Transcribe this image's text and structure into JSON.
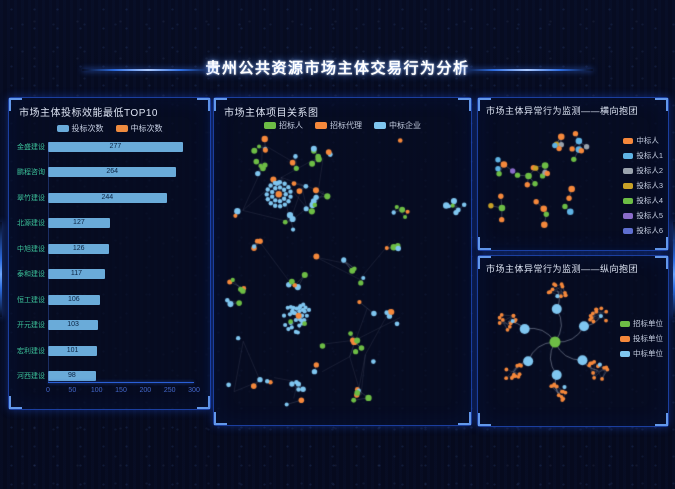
{
  "header": {
    "title": "贵州公共资源市场主体交易行为分析"
  },
  "chart_data": [
    {
      "id": "bidding-efficiency-top10",
      "type": "bar",
      "orientation": "horizontal",
      "title": "市场主体投标效能最低TOP10",
      "legend": [
        {
          "label": "投标次数",
          "color": "#6aabd9"
        },
        {
          "label": "中标次数",
          "color": "#ef8b3f"
        }
      ],
      "categories": [
        "金盛建设",
        "鹏程咨询",
        "翠竹建设",
        "北源建设",
        "中旭建设",
        "泰和建设",
        "恒工建设",
        "开元建设",
        "宏利建设",
        "河西建设"
      ],
      "values": [
        277,
        264,
        244,
        127,
        126,
        117,
        106,
        103,
        101,
        98
      ],
      "series_name": "投标次数",
      "xlim": [
        0,
        300
      ],
      "xticks": [
        0,
        50,
        100,
        150,
        200,
        250,
        300
      ],
      "grid": false
    },
    {
      "id": "project-relationship-network",
      "type": "network",
      "title": "市场主体项目关系图",
      "legend": [
        {
          "label": "招标人",
          "color": "#6dbd45"
        },
        {
          "label": "招标代理",
          "color": "#f5883b"
        },
        {
          "label": "中标企业",
          "color": "#7fc6f0"
        }
      ],
      "edge_color": "#7d8799",
      "seed": 12,
      "features": [
        {
          "kind": "double-ring-cluster",
          "x": 0.25,
          "y": 0.21,
          "center_color": "#f5883b",
          "ring_color": "#7fc6f0",
          "inner_count": 9,
          "outer_count": 15
        },
        {
          "kind": "dense-blob-cluster",
          "x": 0.32,
          "y": 0.64,
          "dot_color": "#7fc6f0",
          "count": 34
        },
        {
          "kind": "scattered-groups",
          "groups": 42,
          "nodes_min": 1,
          "nodes_max": 5
        }
      ]
    },
    {
      "id": "abnormal-horizontal-collusion",
      "type": "network",
      "variant": "small-clusters",
      "title": "市场主体异常行为监测——横向抱团",
      "legend": [
        {
          "label": "中标人",
          "color": "#f5883b"
        },
        {
          "label": "投标人1",
          "color": "#5fb3e4"
        },
        {
          "label": "投标人2",
          "color": "#9aa3ad"
        },
        {
          "label": "投标人3",
          "color": "#c9a227"
        },
        {
          "label": "投标人4",
          "color": "#6dbd45"
        },
        {
          "label": "投标人5",
          "color": "#8b6cc9"
        },
        {
          "label": "投标人6",
          "color": "#5f6fd0"
        }
      ],
      "cluster_count": 11,
      "seed": 5
    },
    {
      "id": "abnormal-vertical-collusion",
      "type": "network",
      "variant": "dandelion",
      "title": "市场主体异常行为监测——纵向抱团",
      "legend": [
        {
          "label": "招标单位",
          "color": "#6dbd45"
        },
        {
          "label": "投标单位",
          "color": "#f5883b"
        },
        {
          "label": "中标单位",
          "color": "#7fc6f0"
        }
      ],
      "arms": 6,
      "center_color": "#6dbd45",
      "hub_color": "#7fc6f0",
      "cluster_dot_color": "#f5883b",
      "seed": 3
    }
  ]
}
